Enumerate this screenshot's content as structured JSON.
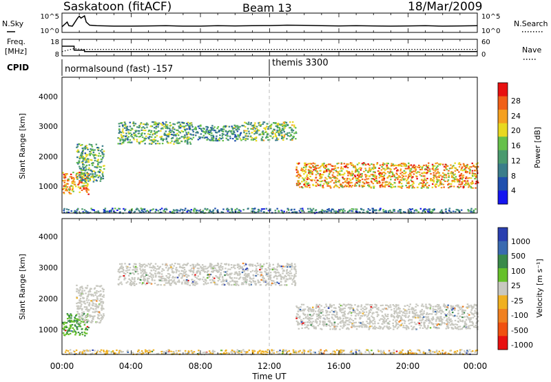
{
  "header": {
    "title": "Saskatoon (fitACF)",
    "beam": "Beam 13",
    "date": "18/Mar/2009"
  },
  "noise_panel": {
    "left_label": "N.Sky",
    "right_label": "N.Search",
    "left_ticks": [
      "10^5",
      "10^0"
    ],
    "right_ticks": [
      "10^5",
      "10^0"
    ]
  },
  "freq_panel": {
    "left_label_line1": "Freq.",
    "left_label_line2": "[MHz]",
    "right_label": "Nave",
    "left_ticks": [
      "18",
      "8"
    ],
    "right_ticks": [
      "60",
      "0"
    ]
  },
  "cpid": {
    "label": "CPID",
    "segments": [
      {
        "name": "normalsound (fast) -157",
        "start_hour": 0
      },
      {
        "name": "themis 3300",
        "start_hour": 12
      }
    ]
  },
  "x_axis": {
    "label": "Time UT",
    "ticks": [
      "00:00",
      "04:00",
      "08:00",
      "12:00",
      "16:00",
      "20:00",
      "00:00"
    ]
  },
  "power_panel": {
    "ylabel": "Slant Range [km]",
    "yticks": [
      "1000",
      "2000",
      "3000",
      "4000"
    ],
    "colorbar_title": "Power [dB]",
    "colorbar_ticks": [
      "4",
      "8",
      "12",
      "16",
      "20",
      "24",
      "28"
    ]
  },
  "velocity_panel": {
    "ylabel": "Slant Range [km]",
    "yticks": [
      "1000",
      "2000",
      "3000",
      "4000"
    ],
    "colorbar_title": "Velocity [m s⁻¹]",
    "colorbar_ticks": [
      "1000",
      "500",
      "100",
      "25",
      "-25",
      "-100",
      "-500",
      "-1000"
    ]
  },
  "colors": {
    "power_scale": [
      "#1515f0",
      "#1f4fae",
      "#3a7d8a",
      "#4a9a6e",
      "#66c04a",
      "#e8d820",
      "#f5a020",
      "#f06018",
      "#e81010"
    ],
    "velocity_scale": [
      "#2a3fb0",
      "#3a6ab0",
      "#3a8a4a",
      "#66c02a",
      "#c8c8c0",
      "#f0b020",
      "#f08020",
      "#f05010",
      "#e81010"
    ]
  },
  "chart_data": [
    {
      "type": "line",
      "title": "Saskatoon (fitACF)",
      "xlabel": "",
      "ylabel": "N.Sky",
      "xlim": [
        0,
        24
      ],
      "yscale": "log",
      "ylim": [
        1,
        100000
      ],
      "series": [
        {
          "x": [
            0,
            0.3,
            0.4,
            0.6,
            0.9,
            1.0,
            1.1,
            1.3,
            1.4,
            1.6,
            2,
            3,
            4,
            5,
            6,
            7,
            8,
            9,
            10,
            11,
            12,
            13,
            14,
            15,
            16,
            17,
            18,
            19,
            20,
            21,
            22,
            23,
            24
          ],
          "y": [
            20,
            500,
            40,
            30,
            8000,
            30000,
            8000,
            40000,
            500,
            60,
            40,
            30,
            30,
            35,
            40,
            30,
            30,
            40,
            35,
            40,
            45,
            60,
            50,
            40,
            35,
            40,
            35,
            30,
            35,
            40,
            30,
            35,
            40
          ]
        }
      ]
    },
    {
      "type": "line",
      "xlabel": "",
      "ylabel": "Freq. [MHz]",
      "xlim": [
        0,
        24
      ],
      "ylim": [
        8,
        18
      ],
      "series": [
        {
          "x": [
            0,
            0.7,
            0.7,
            1.3,
            1.3,
            24
          ],
          "y": [
            14.2,
            14.2,
            11.5,
            11.5,
            10.5,
            10.5
          ]
        },
        {
          "x": [
            0,
            0.7,
            1.3,
            12,
            24
          ],
          "y": [
            10.5,
            12.5,
            12.0,
            12.0,
            12.0
          ]
        }
      ]
    },
    {
      "type": "heatmap",
      "xlabel": "",
      "ylabel": "Slant Range [km]",
      "xlim": [
        0,
        24
      ],
      "ylim": [
        180,
        4500
      ],
      "colorbar_label": "Power [dB]",
      "clim": [
        0,
        30
      ],
      "echo_bands": [
        {
          "t": [
            0,
            1.5
          ],
          "range_km": [
            800,
            1500
          ],
          "power_dB": 22
        },
        {
          "t": [
            0.8,
            2.4
          ],
          "range_km": [
            1200,
            2400
          ],
          "power_dB": 12
        },
        {
          "t": [
            3.2,
            7.5
          ],
          "range_km": [
            2400,
            3100
          ],
          "power_dB": 12
        },
        {
          "t": [
            7.5,
            10.5
          ],
          "range_km": [
            2500,
            3000
          ],
          "power_dB": 10
        },
        {
          "t": [
            10.5,
            13.5
          ],
          "range_km": [
            2500,
            3100
          ],
          "power_dB": 14
        },
        {
          "t": [
            13.5,
            24
          ],
          "range_km": [
            1000,
            1800
          ],
          "power_dB": 22
        },
        {
          "t": [
            0,
            24
          ],
          "range_km": [
            200,
            350
          ],
          "power_dB": 8
        }
      ]
    },
    {
      "type": "heatmap",
      "xlabel": "Time UT",
      "ylabel": "Slant Range [km]",
      "xlim": [
        0,
        24
      ],
      "ylim": [
        180,
        4500
      ],
      "colorbar_label": "Velocity [m s-1]",
      "clim": [
        -1000,
        1000
      ],
      "echo_bands": [
        {
          "t": [
            0,
            1.5
          ],
          "range_km": [
            800,
            1500
          ],
          "velocity": 100
        },
        {
          "t": [
            0.8,
            2.4
          ],
          "range_km": [
            1200,
            2400
          ],
          "velocity": 0
        },
        {
          "t": [
            3.2,
            13.5
          ],
          "range_km": [
            2400,
            3100
          ],
          "velocity": 0
        },
        {
          "t": [
            13.5,
            24
          ],
          "range_km": [
            1000,
            1800
          ],
          "velocity": 0
        },
        {
          "t": [
            0,
            24
          ],
          "range_km": [
            200,
            350
          ],
          "velocity": -100
        }
      ]
    }
  ]
}
